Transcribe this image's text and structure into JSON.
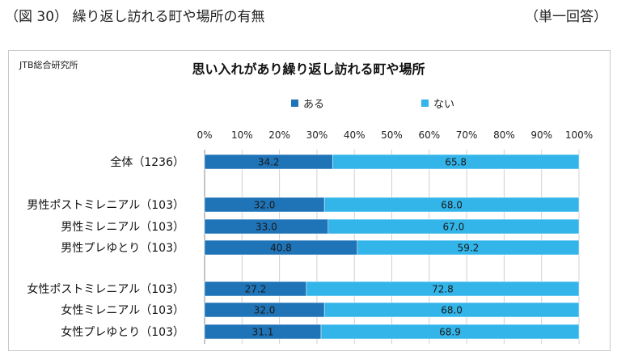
{
  "header": {
    "figure_title": "（図 30） 繰り返し訪れる町や場所の有無",
    "answer_type": "（単一回答）"
  },
  "source": "JTB総合研究所",
  "chart_data": {
    "type": "bar",
    "orientation": "horizontal",
    "stacked": true,
    "percent": true,
    "title": "思い入れがあり繰り返し訪れる町や場所",
    "categories": [
      "全体（1236）",
      "男性ポストミレニアル（103）",
      "男性ミレニアル（103）",
      "男性プレゆとり（103）",
      "女性ポストミレニアル（103）",
      "女性ミレニアル（103）",
      "女性プレゆとり（103）"
    ],
    "groups": [
      [
        0
      ],
      [
        1,
        2,
        3
      ],
      [
        4,
        5,
        6
      ]
    ],
    "series": [
      {
        "name": "ある",
        "color": "#1f73b7",
        "values": [
          34.2,
          32.0,
          33.0,
          40.8,
          27.2,
          32.0,
          31.1
        ]
      },
      {
        "name": "ない",
        "color": "#33b5ea",
        "values": [
          65.8,
          68.0,
          67.0,
          59.2,
          72.8,
          68.0,
          68.9
        ]
      }
    ],
    "xlim": [
      0,
      100
    ],
    "xticks": [
      "0%",
      "10%",
      "20%",
      "30%",
      "40%",
      "50%",
      "60%",
      "70%",
      "80%",
      "90%",
      "100%"
    ],
    "legend_position": "top",
    "grid": true
  }
}
